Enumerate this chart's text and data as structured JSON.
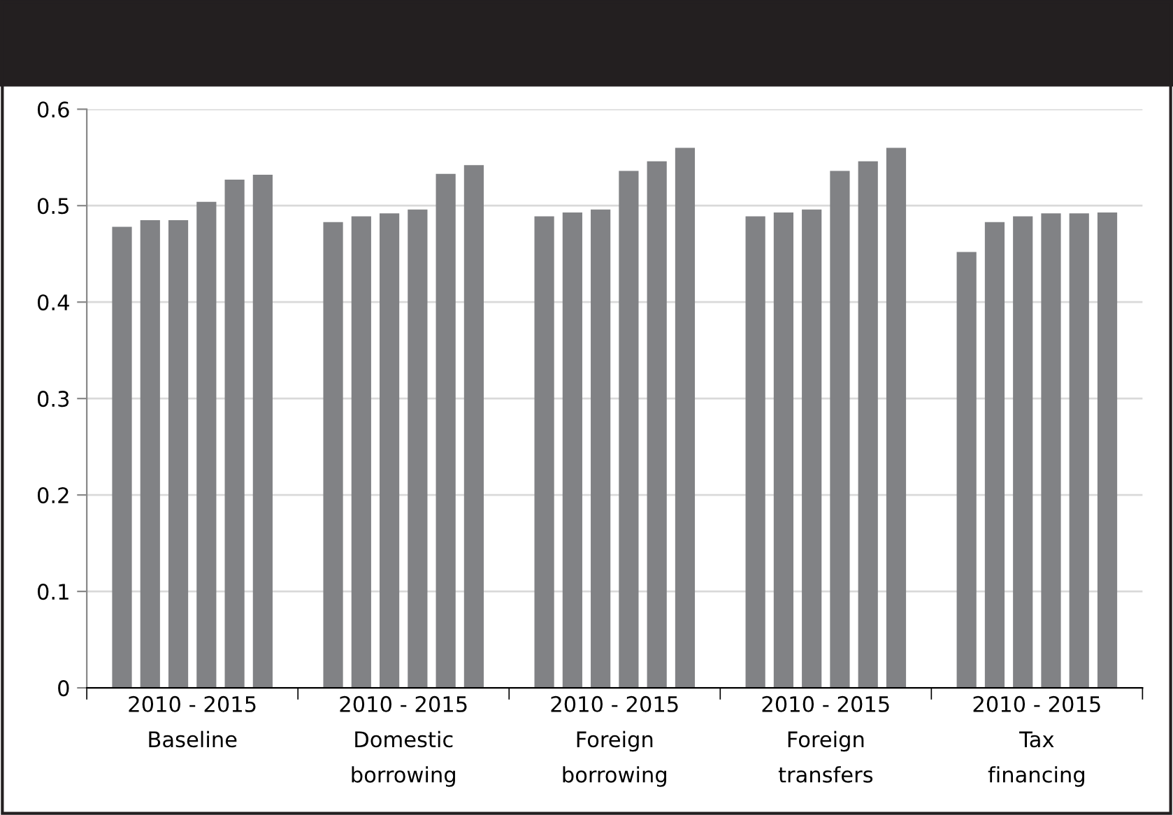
{
  "chart_data": {
    "type": "bar",
    "categories": [
      "2010 - 2015\nBaseline",
      "2010 - 2015\nDomestic\nborrowing",
      "2010 - 2015\nForeign\nborrowing",
      "2010 - 2015\nForeign\ntransfers",
      "2010 - 2015\nTax\nfinancing"
    ],
    "series": [
      {
        "color": "#818285",
        "values": [
          0.478,
          0.483,
          0.489,
          0.489,
          0.452
        ]
      },
      {
        "color": "#818285",
        "values": [
          0.485,
          0.489,
          0.493,
          0.493,
          0.483
        ]
      },
      {
        "color": "#818285",
        "values": [
          0.485,
          0.492,
          0.496,
          0.496,
          0.489
        ]
      },
      {
        "color": "#818285",
        "values": [
          0.504,
          0.496,
          0.536,
          0.536,
          0.492
        ]
      },
      {
        "color": "#818285",
        "values": [
          0.527,
          0.533,
          0.546,
          0.546,
          0.492
        ]
      },
      {
        "color": "#818285",
        "values": [
          0.532,
          0.542,
          0.56,
          0.56,
          0.493
        ]
      }
    ],
    "ylim": [
      0,
      0.6
    ],
    "yticks": [
      0,
      0.1,
      0.2,
      0.3,
      0.4,
      0.5,
      0.6
    ],
    "grid": "y"
  }
}
